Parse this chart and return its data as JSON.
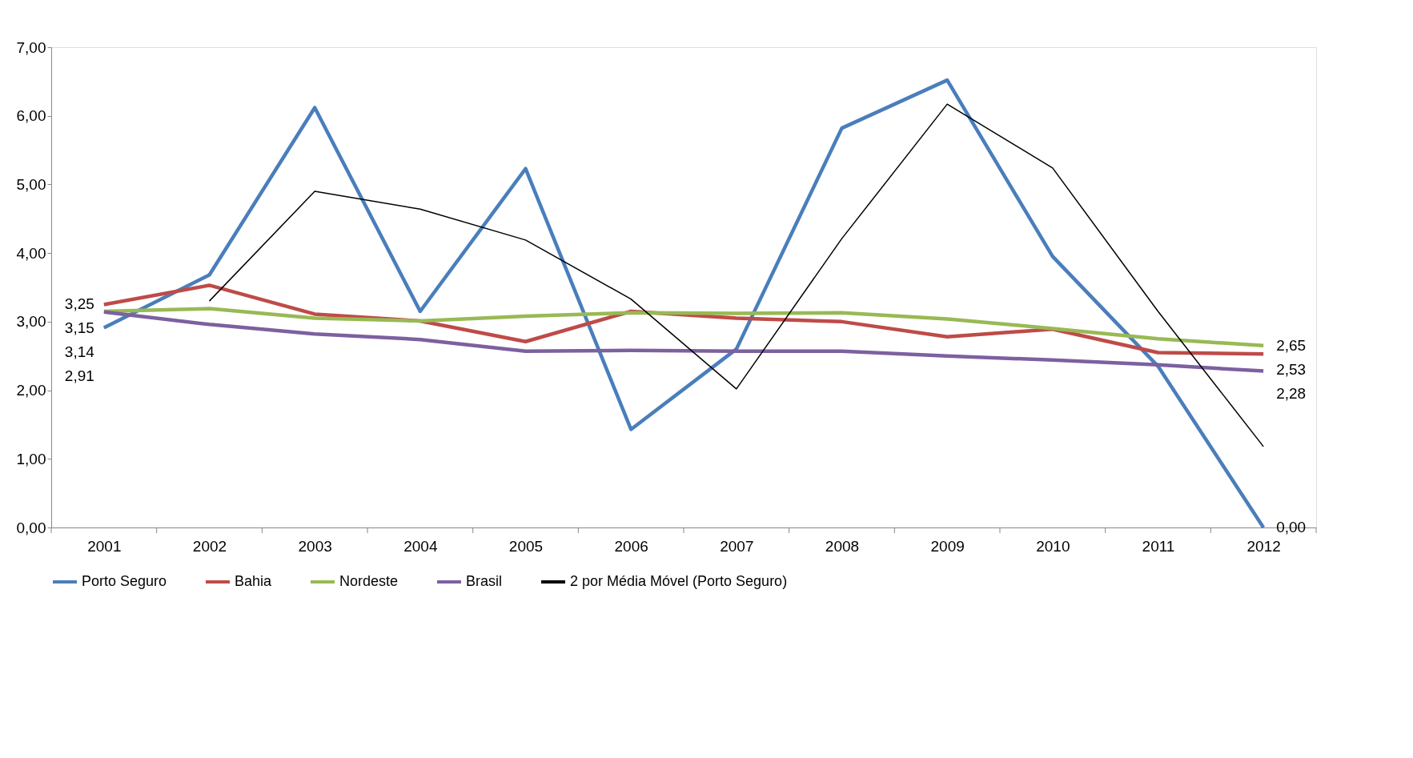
{
  "chart_data": {
    "type": "line",
    "categories": [
      "2001",
      "2002",
      "2003",
      "2004",
      "2005",
      "2006",
      "2007",
      "2008",
      "2009",
      "2010",
      "2011",
      "2012"
    ],
    "ylim": [
      0,
      7
    ],
    "yticks": [
      {
        "value": 0,
        "label": "0,00"
      },
      {
        "value": 1,
        "label": "1,00"
      },
      {
        "value": 2,
        "label": "2,00"
      },
      {
        "value": 3,
        "label": "3,00"
      },
      {
        "value": 4,
        "label": "4,00"
      },
      {
        "value": 5,
        "label": "5,00"
      },
      {
        "value": 6,
        "label": "6,00"
      },
      {
        "value": 7,
        "label": "7,00"
      }
    ],
    "grid": false,
    "legend": "bottom",
    "marker": "none",
    "line_style": "solid",
    "series": [
      {
        "name": "Porto Seguro",
        "color": "#4a7ebb",
        "values": [
          2.91,
          3.68,
          6.12,
          3.15,
          5.23,
          1.43,
          2.6,
          5.82,
          6.52,
          3.95,
          2.35,
          0.0
        ],
        "value_labels": [
          "2,91",
          null,
          null,
          null,
          null,
          null,
          null,
          null,
          null,
          null,
          null,
          "0,00"
        ]
      },
      {
        "name": "Bahia",
        "color": "#be4b48",
        "values": [
          3.25,
          3.53,
          3.11,
          3.01,
          2.71,
          3.15,
          3.05,
          3.0,
          2.78,
          2.89,
          2.55,
          2.53
        ],
        "value_labels": [
          "3,25",
          null,
          null,
          null,
          null,
          null,
          null,
          null,
          null,
          null,
          null,
          "2,53"
        ]
      },
      {
        "name": "Nordeste",
        "color": "#98b954",
        "values": [
          3.15,
          3.19,
          3.05,
          3.01,
          3.08,
          3.13,
          3.12,
          3.13,
          3.04,
          2.9,
          2.75,
          2.65
        ],
        "value_labels": [
          "3,15",
          null,
          null,
          null,
          null,
          null,
          null,
          null,
          null,
          null,
          null,
          "2,65"
        ]
      },
      {
        "name": "Brasil",
        "color": "#7d60a0",
        "values": [
          3.14,
          2.96,
          2.82,
          2.74,
          2.57,
          2.58,
          2.57,
          2.57,
          2.5,
          2.44,
          2.37,
          2.28
        ],
        "value_labels": [
          "3,14",
          null,
          null,
          null,
          null,
          null,
          null,
          null,
          null,
          null,
          null,
          "2,28"
        ]
      },
      {
        "name": "2 por Média Móvel (Porto Seguro)",
        "color": "#000000",
        "values": [
          null,
          3.3,
          4.9,
          4.64,
          4.19,
          3.33,
          2.02,
          4.21,
          6.17,
          5.24,
          3.15,
          1.18
        ]
      }
    ]
  }
}
